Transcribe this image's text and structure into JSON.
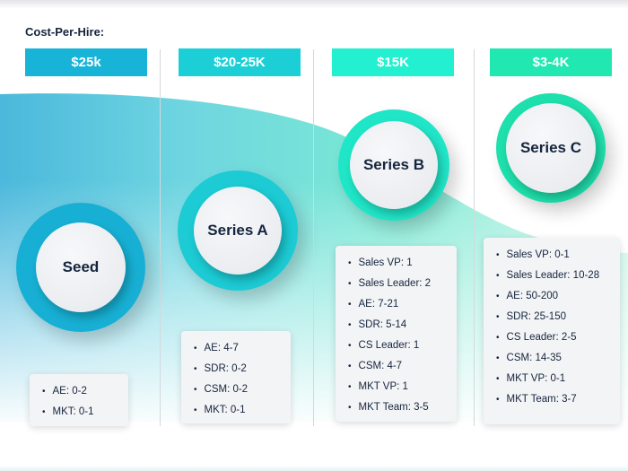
{
  "title": "Cost-Per-Hire:",
  "colors": {
    "seed": "#18b4d8",
    "series_a": "#1ccfd6",
    "series_b": "#22f0d0",
    "series_c": "#20e8b0",
    "text": "#15253d"
  },
  "stages": [
    {
      "name": "Seed",
      "cost": "$25k",
      "roles": [
        "AE: 0-2",
        "MKT: 0-1"
      ]
    },
    {
      "name": "Series A",
      "cost": "$20-25K",
      "roles": [
        "AE: 4-7",
        "SDR: 0-2",
        "CSM: 0-2",
        "MKT: 0-1"
      ]
    },
    {
      "name": "Series B",
      "cost": "$15K",
      "roles": [
        "Sales VP: 1",
        "Sales Leader: 2",
        "AE: 7-21",
        "SDR: 5-14",
        "CS Leader: 1",
        "CSM: 4-7",
        "MKT VP: 1",
        "MKT Team: 3-5"
      ]
    },
    {
      "name": "Series C",
      "cost": "$3-4K",
      "roles": [
        "Sales VP: 0-1",
        "Sales Leader: 10-28",
        "AE: 50-200",
        "SDR: 25-150",
        "CS Leader: 2-5",
        "CSM: 14-35",
        "MKT VP: 0-1",
        "MKT Team: 3-7"
      ]
    }
  ]
}
